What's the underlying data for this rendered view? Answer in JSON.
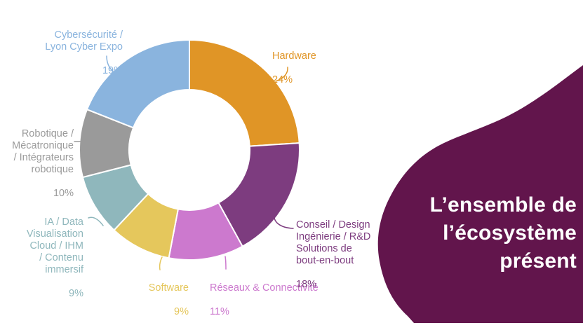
{
  "title_panel": {
    "text": "L’ensemble de\nl’écosystème\nprésent",
    "bg_color": "#62154C",
    "text_color": "#FFFFFF"
  },
  "chart_data": {
    "type": "pie",
    "donut": true,
    "start_angle_deg": 0,
    "direction": "clockwise",
    "label_style": "outside-with-leader-lines",
    "legend_position": "none",
    "slices": [
      {
        "id": "hardware",
        "label": "Hardware",
        "value": 24,
        "pct_label": "24%",
        "color": "#E09526"
      },
      {
        "id": "conseil",
        "label": "Conseil / Design\nIngénierie / R&D\nSolutions de\nbout-en-bout",
        "value": 18,
        "pct_label": "18%",
        "color": "#7D3C7F"
      },
      {
        "id": "reseaux",
        "label": "Réseaux & Connectivité",
        "value": 11,
        "pct_label": "11%",
        "color": "#CC79CE"
      },
      {
        "id": "software",
        "label": "Software",
        "value": 9,
        "pct_label": "9%",
        "color": "#E5C75C"
      },
      {
        "id": "ia_data",
        "label": "IA / Data\nVisualisation\nCloud / IHM\n/ Contenu\nimmersif",
        "value": 9,
        "pct_label": "9%",
        "color": "#8FB7BC"
      },
      {
        "id": "robotique",
        "label": "Robotique /\nMécatronique\n/ Intégrateurs\nrobotique",
        "value": 10,
        "pct_label": "10%",
        "color": "#9A9A9A"
      },
      {
        "id": "cyber",
        "label": "Cybersécurité /\nLyon Cyber Expo",
        "value": 19,
        "pct_label": "19%",
        "color": "#8AB4DE"
      }
    ]
  }
}
